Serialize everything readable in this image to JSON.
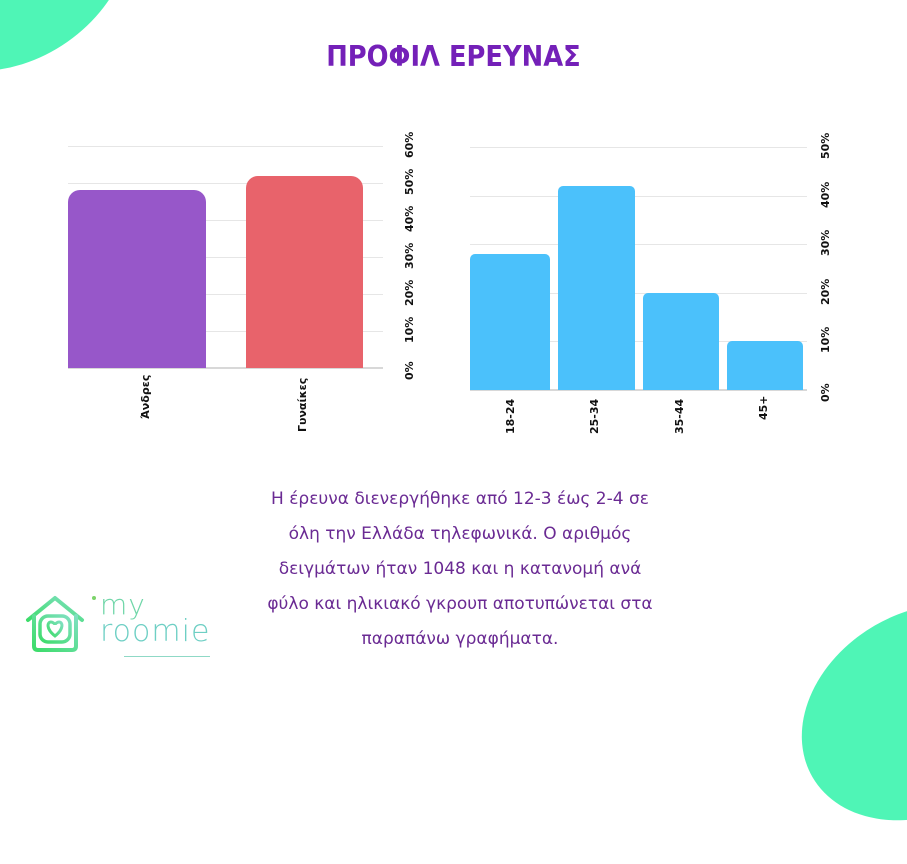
{
  "title": "ΠΡΟΦΙΛ ΕΡΕΥΝΑΣ",
  "description": [
    "Η έρευνα διενεργήθηκε από 12-3 έως 2-4 σε",
    "όλη την Ελλάδα τηλεφωνικά. Ο αριθμός",
    "δειγμάτων ήταν 1048 και η κατανομή ανά",
    "φύλο και ηλικιακό γκρουπ αποτυπώνεται στα",
    "παραπάνω γραφήματα."
  ],
  "logo": {
    "line1": "my",
    "line2": "roomie"
  },
  "colors": {
    "title": "#7420b8",
    "text": "#6a2a93",
    "accent_green": "#4ff5b6",
    "men": "#9757c9",
    "women": "#e8636b",
    "age": "#4bc1fb"
  },
  "chart_data": [
    {
      "type": "bar",
      "title": "",
      "xlabel": "",
      "ylabel": "",
      "categories": [
        "Άνδρες",
        "Γυναίκες"
      ],
      "values": [
        48,
        52
      ],
      "colors": [
        "#9757c9",
        "#e8636b"
      ],
      "yticks": [
        "0%",
        "10%",
        "20%",
        "30%",
        "40%",
        "50%",
        "60%"
      ],
      "ylim": [
        0,
        60
      ],
      "grid": true,
      "axis_position": "right"
    },
    {
      "type": "bar",
      "title": "",
      "xlabel": "",
      "ylabel": "",
      "categories": [
        "18-24",
        "25-34",
        "35-44",
        "45+"
      ],
      "values": [
        28,
        42,
        20,
        10
      ],
      "colors": [
        "#4bc1fb",
        "#4bc1fb",
        "#4bc1fb",
        "#4bc1fb"
      ],
      "yticks": [
        "0%",
        "10%",
        "20%",
        "30%",
        "40%",
        "50%"
      ],
      "ylim": [
        0,
        50
      ],
      "grid": true,
      "axis_position": "right"
    }
  ]
}
